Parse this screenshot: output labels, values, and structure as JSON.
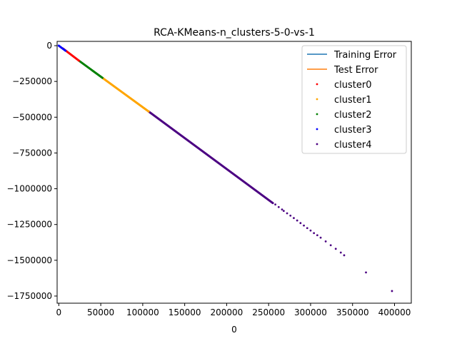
{
  "chart_data": {
    "type": "scatter",
    "title": "RCA-KMeans-n_clusters-5-0-vs-1",
    "xlabel": "0",
    "ylabel": "",
    "xlim": [
      -2000,
      420000
    ],
    "ylim": [
      -1800000,
      30000
    ],
    "xticks": [
      0,
      50000,
      100000,
      150000,
      200000,
      250000,
      300000,
      350000,
      400000
    ],
    "yticks": [
      0,
      -250000,
      -500000,
      -750000,
      -1000000,
      -1250000,
      -1500000,
      -1750000
    ],
    "grid": false,
    "legend_position": "top-right",
    "lines": [
      {
        "name": "Training Error",
        "color": "#1f77b4",
        "x": [],
        "y": []
      },
      {
        "name": "Test Error",
        "color": "#ff7f0e",
        "x": [],
        "y": []
      }
    ],
    "series": [
      {
        "name": "cluster0",
        "color": "#ff0000",
        "segments": [
          [
            5000,
            24000,
            -20000,
            -105000
          ]
        ],
        "x": [],
        "y": []
      },
      {
        "name": "cluster1",
        "color": "#ffa500",
        "segments": [
          [
            52000,
            107000,
            -225000,
            -460000
          ]
        ],
        "x": [],
        "y": []
      },
      {
        "name": "cluster2",
        "color": "#008000",
        "segments": [
          [
            24000,
            52000,
            -105000,
            -225000
          ]
        ],
        "x": [],
        "y": []
      },
      {
        "name": "cluster3",
        "color": "#0000ff",
        "segments": [
          [
            0,
            8000,
            0,
            -35000
          ]
        ],
        "x": [],
        "y": []
      },
      {
        "name": "cluster4",
        "color": "#4b0082",
        "segments": [
          [
            107000,
            255000,
            -460000,
            -1100000
          ]
        ],
        "x": [
          258000,
          262000,
          266000,
          268000,
          272000,
          276000,
          280000,
          284000,
          288000,
          292000,
          296000,
          300000,
          304000,
          308000,
          312000,
          318000,
          324000,
          330000,
          336000,
          340000,
          366000,
          397000
        ],
        "y": [
          -1110000,
          -1128000,
          -1145000,
          -1155000,
          -1172000,
          -1188000,
          -1205000,
          -1222000,
          -1240000,
          -1257000,
          -1275000,
          -1292000,
          -1310000,
          -1325000,
          -1342000,
          -1368000,
          -1395000,
          -1420000,
          -1446000,
          -1465000,
          -1585000,
          -1715000
        ]
      }
    ]
  }
}
